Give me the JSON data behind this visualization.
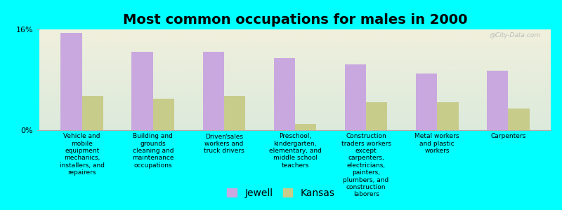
{
  "title": "Most common occupations for males in 2000",
  "categories": [
    "Vehicle and\nmobile\nequipment\nmechanics,\ninstallers, and\nrepairers",
    "Building and\ngrounds\ncleaning and\nmaintenance\noccupations",
    "Driver/sales\nworkers and\ntruck drivers",
    "Preschool,\nkindergarten,\nelementary, and\nmiddle school\nteachers",
    "Construction\ntraders workers\nexcept\ncarpenters,\nelectricians,\npainters,\nplumbers, and\nconstruction\nlaborers",
    "Metal workers\nand plastic\nworkers",
    "Carpenters"
  ],
  "jewell_values": [
    15.5,
    12.5,
    12.5,
    11.5,
    10.5,
    9.0,
    9.5
  ],
  "kansas_values": [
    5.5,
    5.0,
    5.5,
    1.0,
    4.5,
    4.5,
    3.5
  ],
  "jewell_color": "#c9a8e0",
  "kansas_color": "#c8cc8a",
  "background_color": "#00ffff",
  "plot_bg_top": "#f0f0dc",
  "plot_bg_bottom": "#dceadc",
  "ylim": [
    0,
    16
  ],
  "yticks": [
    0,
    16
  ],
  "ytick_labels": [
    "0%",
    "16%"
  ],
  "legend_labels": [
    "Jewell",
    "Kansas"
  ],
  "watermark": "@City-Data.com",
  "bar_width": 0.3,
  "title_fontsize": 14,
  "tick_fontsize": 8,
  "label_fontsize": 6.5,
  "legend_fontsize": 10
}
